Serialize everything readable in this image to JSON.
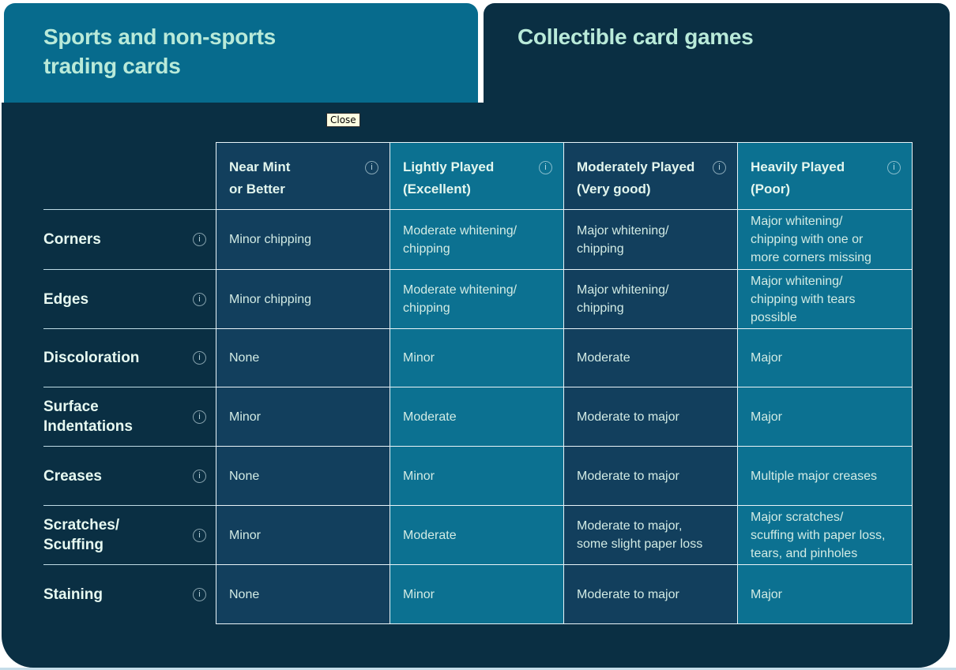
{
  "tabs": [
    {
      "label": "Sports and non-sports\ntrading cards",
      "active": true
    },
    {
      "label": "Collectible card games",
      "active": false
    }
  ],
  "tooltip": {
    "label": "Close"
  },
  "icons": {
    "info_glyph": "i"
  },
  "colors": {
    "tab_active_bg": "#076b8d",
    "panel_bg": "#0a2f43",
    "cell_dark": "#123f5d",
    "cell_teal": "#0c7191",
    "grid_line": "#e9f4f8",
    "tab_text": "#b9ead9",
    "heading_text": "#e7f9f1",
    "cell_text": "#d2ebe4",
    "tooltip_bg": "#fffee1"
  },
  "table": {
    "columns": [
      {
        "label": "Near Mint\nor Better"
      },
      {
        "label": "Lightly Played\n(Excellent)"
      },
      {
        "label": "Moderately Played\n(Very good)"
      },
      {
        "label": "Heavily Played\n(Poor)"
      }
    ],
    "rows": [
      {
        "label": "Corners",
        "cells": [
          "Minor chipping",
          "Moderate whitening/\nchipping",
          "Major whitening/\nchipping",
          "Major whitening/\nchipping with one or\nmore corners missing"
        ]
      },
      {
        "label": "Edges",
        "cells": [
          "Minor chipping",
          "Moderate whitening/\nchipping",
          "Major whitening/\nchipping",
          "Major whitening/\nchipping with tears\npossible"
        ]
      },
      {
        "label": "Discoloration",
        "cells": [
          "None",
          "Minor",
          "Moderate",
          "Major"
        ]
      },
      {
        "label": "Surface\nIndentations",
        "cells": [
          "Minor",
          "Moderate",
          "Moderate to major",
          "Major"
        ]
      },
      {
        "label": "Creases",
        "cells": [
          "None",
          "Minor",
          "Moderate to major",
          "Multiple major creases"
        ]
      },
      {
        "label": "Scratches/\nScuffing",
        "cells": [
          "Minor",
          "Moderate",
          "Moderate to major,\nsome slight paper loss",
          "Major scratches/\nscuffing with paper loss,\ntears, and pinholes"
        ]
      },
      {
        "label": "Staining",
        "cells": [
          "None",
          "Minor",
          "Moderate to major",
          "Major"
        ]
      }
    ]
  }
}
